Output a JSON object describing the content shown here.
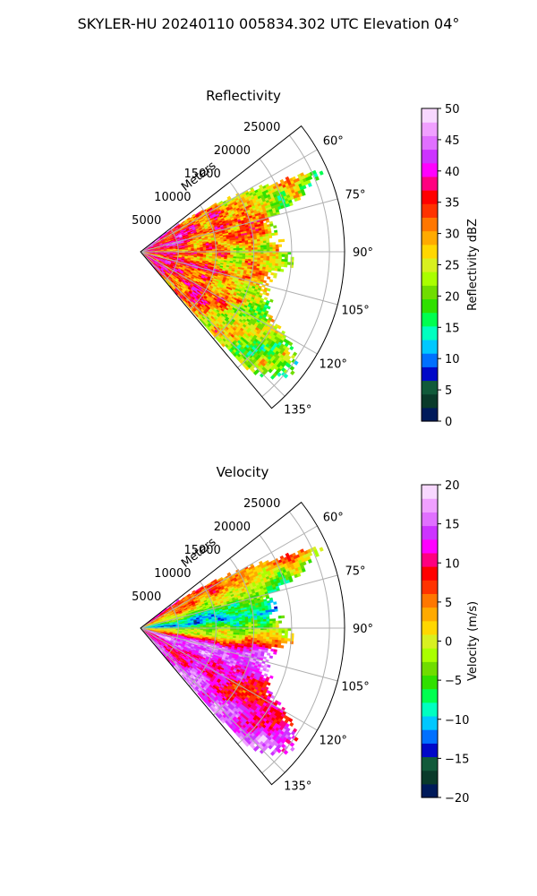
{
  "figure": {
    "suptitle": "SKYLER-HU  20240110  005834.302 UTC Elevation 04°"
  },
  "chart_data": [
    {
      "type": "heatmap",
      "projection": "polar sector",
      "title": "Reflectivity",
      "radial_label": "Meters",
      "radial_ticks": [
        "5000",
        "10000",
        "15000",
        "20000",
        "25000"
      ],
      "radial_range": [
        0,
        27000
      ],
      "azimuth_ticks": [
        "60°",
        "75°",
        "90°",
        "105°",
        "120°",
        "135°"
      ],
      "azimuth_range": [
        52,
        140
      ],
      "grid": true,
      "colorbar": {
        "label": "Reflectivity dBZ",
        "ticks": [
          "0",
          "5",
          "10",
          "15",
          "20",
          "25",
          "30",
          "35",
          "40",
          "45",
          "50"
        ],
        "range": [
          0,
          50
        ],
        "colors": [
          "#001a5a",
          "#0a3a2a",
          "#115a3a",
          "#0008c8",
          "#0070ff",
          "#00c8ff",
          "#00ffc0",
          "#00ff50",
          "#30e000",
          "#70dd00",
          "#aaff00",
          "#d8f020",
          "#ffd700",
          "#ffaa00",
          "#ff7700",
          "#ff3300",
          "#ff0000",
          "#ff0080",
          "#ff00ff",
          "#cc33ff",
          "#e070ff",
          "#f0a0ff",
          "#f8d8ff"
        ]
      },
      "field": {
        "coverage_km": [
          {
            "az": 52,
            "max": 4
          },
          {
            "az": 60,
            "max": 16.0
          },
          {
            "az": 64,
            "max": 23.0
          },
          {
            "az": 66,
            "max": 26.5
          },
          {
            "az": 70,
            "max": 24.0
          },
          {
            "az": 76,
            "max": 18.0
          },
          {
            "az": 82,
            "max": 18.5
          },
          {
            "az": 88,
            "max": 19.0
          },
          {
            "az": 94,
            "max": 21.0
          },
          {
            "az": 100,
            "max": 18.0
          },
          {
            "az": 108,
            "max": 18.0
          },
          {
            "az": 114,
            "max": 19.0
          },
          {
            "az": 118,
            "max": 21.0
          },
          {
            "az": 122,
            "max": 24.0
          },
          {
            "az": 126,
            "max": 26.0
          },
          {
            "az": 132,
            "max": 25.0
          },
          {
            "az": 138,
            "max": 22.0
          },
          {
            "az": 140,
            "max": 4
          }
        ],
        "near_range_dbz": 38,
        "far_range_dbz": 22,
        "left_side_bias_dbz": 4,
        "speckle_dbz": 4.5
      }
    },
    {
      "type": "heatmap",
      "projection": "polar sector",
      "title": "Velocity",
      "radial_label": "Meters",
      "radial_ticks": [
        "5000",
        "10000",
        "15000",
        "20000",
        "25000"
      ],
      "radial_range": [
        0,
        27000
      ],
      "azimuth_ticks": [
        "60°",
        "75°",
        "90°",
        "105°",
        "120°",
        "135°"
      ],
      "azimuth_range": [
        52,
        140
      ],
      "grid": true,
      "colorbar": {
        "label": "Velocity (m/s)",
        "ticks": [
          "−20",
          "−15",
          "−10",
          "−5",
          "0",
          "5",
          "10",
          "15",
          "20"
        ],
        "range": [
          -20,
          20
        ],
        "colors": [
          "#001a5a",
          "#0a3a2a",
          "#115a3a",
          "#0008c8",
          "#0070ff",
          "#00c8ff",
          "#00ffc0",
          "#00ff50",
          "#30e000",
          "#70dd00",
          "#aaff00",
          "#d8f020",
          "#ffd700",
          "#ffaa00",
          "#ff7700",
          "#ff3300",
          "#ff0000",
          "#ff0080",
          "#ff00ff",
          "#cc33ff",
          "#e070ff",
          "#f0a0ff",
          "#f8d8ff"
        ]
      },
      "field": {
        "coverage_km": [
          {
            "az": 52,
            "max": 4
          },
          {
            "az": 60,
            "max": 16.0
          },
          {
            "az": 64,
            "max": 23.0
          },
          {
            "az": 66,
            "max": 26.5
          },
          {
            "az": 70,
            "max": 24.0
          },
          {
            "az": 76,
            "max": 18.0
          },
          {
            "az": 82,
            "max": 18.5
          },
          {
            "az": 88,
            "max": 19.0
          },
          {
            "az": 94,
            "max": 21.0
          },
          {
            "az": 100,
            "max": 18.0
          },
          {
            "az": 108,
            "max": 18.0
          },
          {
            "az": 114,
            "max": 19.0
          },
          {
            "az": 118,
            "max": 21.0
          },
          {
            "az": 122,
            "max": 24.0
          },
          {
            "az": 126,
            "max": 26.0
          },
          {
            "az": 132,
            "max": 25.0
          },
          {
            "az": 138,
            "max": 22.0
          },
          {
            "az": 140,
            "max": 4
          }
        ],
        "velocity_profile": [
          {
            "az": 54,
            "v": 10
          },
          {
            "az": 62,
            "v": 7
          },
          {
            "az": 70,
            "v": 2
          },
          {
            "az": 78,
            "v": -6
          },
          {
            "az": 86,
            "v": -11
          },
          {
            "az": 90,
            "v": -5
          },
          {
            "az": 98,
            "v": 2
          },
          {
            "az": 104,
            "v": 12
          },
          {
            "az": 112,
            "v": 16
          },
          {
            "az": 118,
            "v": 12
          },
          {
            "az": 126,
            "v": 9
          },
          {
            "az": 134,
            "v": 14
          },
          {
            "az": 140,
            "v": 16
          }
        ],
        "speckle_ms": 2.5
      }
    }
  ]
}
